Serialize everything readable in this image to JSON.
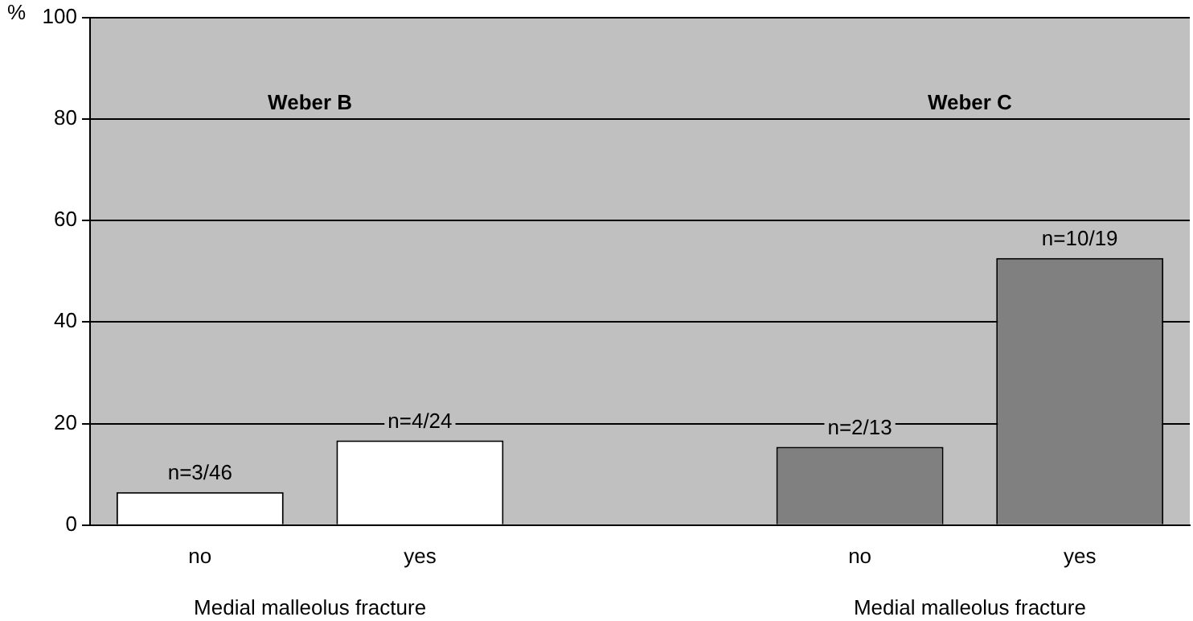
{
  "chart_data": {
    "type": "bar",
    "ylabel": "%",
    "categories": [
      "no",
      "yes",
      null,
      "no",
      "yes"
    ],
    "values": [
      6.5,
      16.7,
      null,
      15.4,
      52.6
    ],
    "colors": [
      "#ffffff",
      "#ffffff",
      "#c0c0c0",
      "#808080",
      "#808080"
    ],
    "value_labels": [
      "n=3/46",
      "n=4/24",
      null,
      "n=2/13",
      "n=10/19"
    ],
    "annotations": [
      "Weber B",
      "Weber C",
      "Medial malleolus fracture",
      "Medial malleolus fracture"
    ],
    "ylim": [
      0,
      100
    ],
    "yticks": [
      0,
      20,
      40,
      60,
      80,
      100
    ],
    "grid": "y"
  }
}
